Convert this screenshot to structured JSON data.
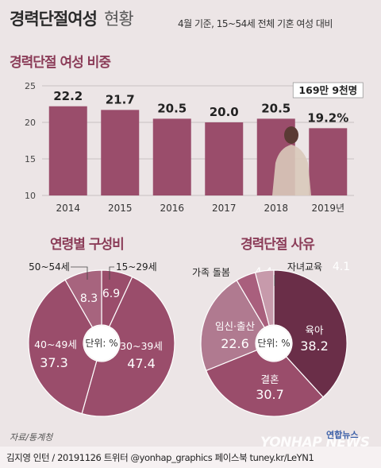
{
  "title_main": "경력단절여성",
  "title_sub": "현황",
  "subtitle": "4월 기준, 15~54세 전체 기혼 여성 대비",
  "source": "자료/통계청",
  "credit": "김지영 인턴 / 20191126 트위터 @yonhap_graphics  페이스북 tuney.kr/LeYN1",
  "watermark": "YONHAP NEWS",
  "brand": "연합뉴스",
  "colors": {
    "bar": "#9a4d6b",
    "bar_light": "#a95f7d",
    "accent": "#8b3c58"
  },
  "chart_data": [
    {
      "type": "bar",
      "title": "경력단절 여성 비중",
      "categories": [
        "2014",
        "2015",
        "2016",
        "2017",
        "2018",
        "2019년"
      ],
      "values": [
        22.2,
        21.7,
        20.5,
        20.0,
        20.5,
        19.2
      ],
      "value_labels": [
        "22.2",
        "21.7",
        "20.5",
        "20.0",
        "20.5",
        "19.2%"
      ],
      "yticks": [
        10,
        15,
        20,
        25
      ],
      "ylim": [
        10,
        25
      ],
      "annotation": "169만 9천명",
      "grid": true
    },
    {
      "type": "pie",
      "title": "연령별 구성비",
      "center_label": "단위: %",
      "slices": [
        {
          "label": "15~29세",
          "value": 6.9,
          "color": "#9a4d6b"
        },
        {
          "label": "30~39세",
          "value": 47.4,
          "color": "#9a4d6b"
        },
        {
          "label": "40~49세",
          "value": 37.3,
          "color": "#9a4d6b"
        },
        {
          "label": "50~54세",
          "value": 8.3,
          "color": "#a7647e"
        }
      ]
    },
    {
      "type": "pie",
      "title": "경력단절 사유",
      "center_label": "단위: %",
      "slices": [
        {
          "label": "육아",
          "value": 38.2,
          "color": "#6a2e48"
        },
        {
          "label": "결혼",
          "value": 30.7,
          "color": "#9a4d6b"
        },
        {
          "label": "임신·출산",
          "value": 22.6,
          "color": "#b07a90"
        },
        {
          "label": "가족 돌봄",
          "value": 4.4,
          "color": "#a95f7d"
        },
        {
          "label": "자녀교육",
          "value": 4.1,
          "color": "#c79aab"
        }
      ]
    }
  ]
}
